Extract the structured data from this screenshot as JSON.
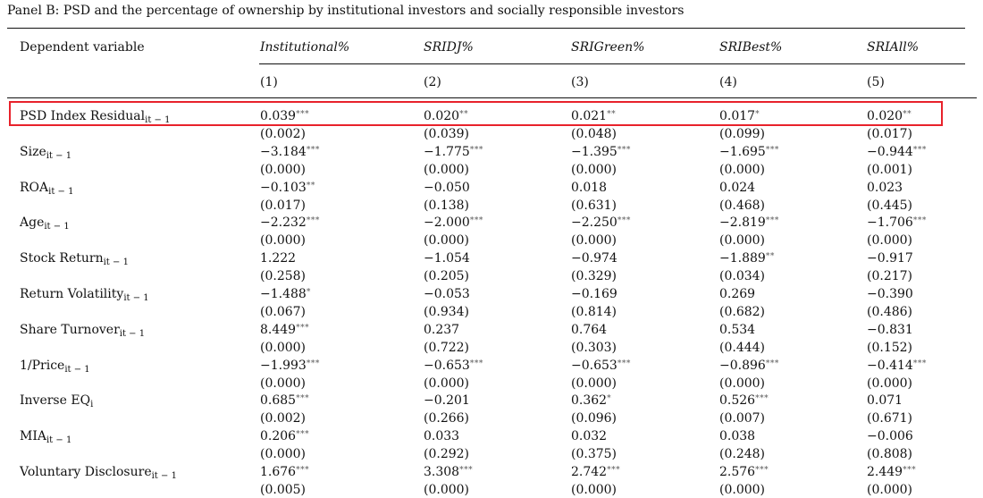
{
  "title": "Panel B: PSD and the percentage of ownership by institutional investors and socially responsible investors",
  "dependent_variable_label": "Dependent variable",
  "columns": [
    {
      "name": "Institutional%",
      "num": "(1)"
    },
    {
      "name": "SRIDJ%",
      "num": "(2)"
    },
    {
      "name": "SRIGreen%",
      "num": "(3)"
    },
    {
      "name": "SRIBest%",
      "num": "(4)"
    },
    {
      "name": "SRIAll%",
      "num": "(5)"
    }
  ],
  "highlight_color": "#e8222b",
  "rows": [
    {
      "label": "PSD Index Residual",
      "sub": "it − 1",
      "highlighted": true,
      "coefs": [
        [
          "0.039",
          "***"
        ],
        [
          "0.020",
          "**"
        ],
        [
          "0.021",
          "**"
        ],
        [
          "0.017",
          "*"
        ],
        [
          "0.020",
          "**"
        ]
      ],
      "pvals": [
        "(0.002)",
        "(0.039)",
        "(0.048)",
        "(0.099)",
        "(0.017)"
      ]
    },
    {
      "label": "Size",
      "sub": "it − 1",
      "coefs": [
        [
          "−3.184",
          "***"
        ],
        [
          "−1.775",
          "***"
        ],
        [
          "−1.395",
          "***"
        ],
        [
          "−1.695",
          "***"
        ],
        [
          "−0.944",
          "***"
        ]
      ],
      "pvals": [
        "(0.000)",
        "(0.000)",
        "(0.000)",
        "(0.000)",
        "(0.001)"
      ]
    },
    {
      "label": "ROA",
      "sub": "it − 1",
      "coefs": [
        [
          "−0.103",
          "**"
        ],
        [
          "−0.050",
          ""
        ],
        [
          "0.018",
          ""
        ],
        [
          "0.024",
          ""
        ],
        [
          "0.023",
          ""
        ]
      ],
      "pvals": [
        "(0.017)",
        "(0.138)",
        "(0.631)",
        "(0.468)",
        "(0.445)"
      ]
    },
    {
      "label": "Age",
      "sub": "it − 1",
      "coefs": [
        [
          "−2.232",
          "***"
        ],
        [
          "−2.000",
          "***"
        ],
        [
          "−2.250",
          "***"
        ],
        [
          "−2.819",
          "***"
        ],
        [
          "−1.706",
          "***"
        ]
      ],
      "pvals": [
        "(0.000)",
        "(0.000)",
        "(0.000)",
        "(0.000)",
        "(0.000)"
      ]
    },
    {
      "label": "Stock Return",
      "sub": "it − 1",
      "coefs": [
        [
          "1.222",
          ""
        ],
        [
          "−1.054",
          ""
        ],
        [
          "−0.974",
          ""
        ],
        [
          "−1.889",
          "**"
        ],
        [
          "−0.917",
          ""
        ]
      ],
      "pvals": [
        "(0.258)",
        "(0.205)",
        "(0.329)",
        "(0.034)",
        "(0.217)"
      ]
    },
    {
      "label": "Return Volatility",
      "sub": "it − 1",
      "coefs": [
        [
          "−1.488",
          "*"
        ],
        [
          "−0.053",
          ""
        ],
        [
          "−0.169",
          ""
        ],
        [
          "0.269",
          ""
        ],
        [
          "−0.390",
          ""
        ]
      ],
      "pvals": [
        "(0.067)",
        "(0.934)",
        "(0.814)",
        "(0.682)",
        "(0.486)"
      ]
    },
    {
      "label": "Share Turnover",
      "sub": "it − 1",
      "coefs": [
        [
          "8.449",
          "***"
        ],
        [
          "0.237",
          ""
        ],
        [
          "0.764",
          ""
        ],
        [
          "0.534",
          ""
        ],
        [
          "−0.831",
          ""
        ]
      ],
      "pvals": [
        "(0.000)",
        "(0.722)",
        "(0.303)",
        "(0.444)",
        "(0.152)"
      ]
    },
    {
      "label": "1/Price",
      "sub": "it − 1",
      "coefs": [
        [
          "−1.993",
          "***"
        ],
        [
          "−0.653",
          "***"
        ],
        [
          "−0.653",
          "***"
        ],
        [
          "−0.896",
          "***"
        ],
        [
          "−0.414",
          "***"
        ]
      ],
      "pvals": [
        "(0.000)",
        "(0.000)",
        "(0.000)",
        "(0.000)",
        "(0.000)"
      ]
    },
    {
      "label": "Inverse EQ",
      "sub": "i",
      "coefs": [
        [
          "0.685",
          "***"
        ],
        [
          "−0.201",
          ""
        ],
        [
          "0.362",
          "*"
        ],
        [
          "0.526",
          "***"
        ],
        [
          "0.071",
          ""
        ]
      ],
      "pvals": [
        "(0.002)",
        "(0.266)",
        "(0.096)",
        "(0.007)",
        "(0.671)"
      ]
    },
    {
      "label": "MIA",
      "sub": "it − 1",
      "coefs": [
        [
          "0.206",
          "***"
        ],
        [
          "0.033",
          ""
        ],
        [
          "0.032",
          ""
        ],
        [
          "0.038",
          ""
        ],
        [
          "−0.006",
          ""
        ]
      ],
      "pvals": [
        "(0.000)",
        "(0.292)",
        "(0.375)",
        "(0.248)",
        "(0.808)"
      ]
    },
    {
      "label": "Voluntary Disclosure",
      "sub": "it − 1",
      "coefs": [
        [
          "1.676",
          "***"
        ],
        [
          "3.308",
          "***"
        ],
        [
          "2.742",
          "***"
        ],
        [
          "2.576",
          "***"
        ],
        [
          "2.449",
          "***"
        ]
      ],
      "pvals": [
        "(0.005)",
        "(0.000)",
        "(0.000)",
        "(0.000)",
        "(0.000)"
      ]
    }
  ]
}
